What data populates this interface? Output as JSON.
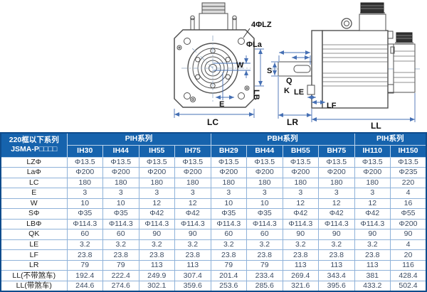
{
  "colors": {
    "header_bg": "#1663ad",
    "table_outline": "#0f4c8c",
    "grid_line": "#8fb2d9",
    "dimension_line": "#4670b4",
    "drawing_line": "#4f4f4f"
  },
  "drawing": {
    "labels": {
      "lz": "4ΦLZ",
      "la": "ΦLa",
      "lb": "LB",
      "w": "W",
      "e": "E",
      "lc": "LC",
      "s": "S",
      "q": "Q",
      "k": "K",
      "le": "LE",
      "lf": "LF",
      "lr": "LR",
      "ll": "LL"
    }
  },
  "table": {
    "corner_title_line1": "220框以下系列",
    "corner_title_line2": "JSMA-P□□□□",
    "groups": [
      {
        "label": "PIH系列",
        "span": 4
      },
      {
        "label": "PBH系列",
        "span": 4
      },
      {
        "label": "PIH系列",
        "span": 2
      }
    ],
    "models": [
      "IH30",
      "IH44",
      "IH55",
      "IH75",
      "BH29",
      "BH44",
      "BH55",
      "BH75",
      "IH110",
      "IH150"
    ],
    "rows": [
      {
        "label": "LZΦ",
        "values": [
          "Φ13.5",
          "Φ13.5",
          "Φ13.5",
          "Φ13.5",
          "Φ13.5",
          "Φ13.5",
          "Φ13.5",
          "Φ13.5",
          "Φ13.5",
          "Φ13.5"
        ]
      },
      {
        "label": "LaΦ",
        "values": [
          "Φ200",
          "Φ200",
          "Φ200",
          "Φ200",
          "Φ200",
          "Φ200",
          "Φ200",
          "Φ200",
          "Φ200",
          "Φ235"
        ]
      },
      {
        "label": "LC",
        "values": [
          "180",
          "180",
          "180",
          "180",
          "180",
          "180",
          "180",
          "180",
          "180",
          "220"
        ]
      },
      {
        "label": "E",
        "values": [
          "3",
          "3",
          "3",
          "3",
          "3",
          "3",
          "3",
          "3",
          "3",
          "4"
        ]
      },
      {
        "label": "W",
        "values": [
          "10",
          "10",
          "12",
          "12",
          "10",
          "10",
          "12",
          "12",
          "12",
          "16"
        ]
      },
      {
        "label": "SΦ",
        "values": [
          "Φ35",
          "Φ35",
          "Φ42",
          "Φ42",
          "Φ35",
          "Φ35",
          "Φ42",
          "Φ42",
          "Φ42",
          "Φ55"
        ]
      },
      {
        "label": "LBΦ",
        "values": [
          "Φ114.3",
          "Φ114.3",
          "Φ114.3",
          "Φ114.3",
          "Φ114.3",
          "Φ114.3",
          "Φ114.3",
          "Φ114.3",
          "Φ114.3",
          "Φ200"
        ]
      },
      {
        "label": "QK",
        "values": [
          "60",
          "60",
          "90",
          "90",
          "60",
          "60",
          "90",
          "90",
          "90",
          "90"
        ]
      },
      {
        "label": "LE",
        "values": [
          "3.2",
          "3.2",
          "3.2",
          "3.2",
          "3.2",
          "3.2",
          "3.2",
          "3.2",
          "3.2",
          "4"
        ]
      },
      {
        "label": "LF",
        "values": [
          "23.8",
          "23.8",
          "23.8",
          "23.8",
          "23.8",
          "23.8",
          "23.8",
          "23.8",
          "23.8",
          "20"
        ]
      },
      {
        "label": "LR",
        "values": [
          "79",
          "79",
          "113",
          "113",
          "79",
          "79",
          "113",
          "113",
          "113",
          "116"
        ]
      },
      {
        "label": "LL(不带煞车)",
        "values": [
          "192.4",
          "222.4",
          "249.9",
          "307.4",
          "201.4",
          "233.4",
          "269.4",
          "343.4",
          "381",
          "428.4"
        ]
      },
      {
        "label": "LL(带煞车)",
        "values": [
          "244.6",
          "274.6",
          "302.1",
          "359.6",
          "253.6",
          "285.6",
          "321.6",
          "395.6",
          "433.2",
          "502.4"
        ]
      }
    ]
  }
}
